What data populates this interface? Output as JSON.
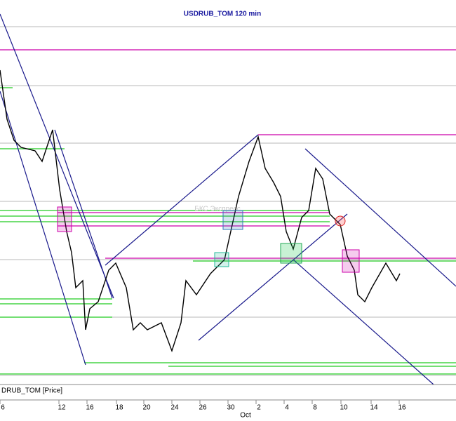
{
  "chart_data": {
    "type": "candlestick",
    "title": "USDRUB_TOM 120 min",
    "panel_label": "DRUB_TOM [Price]",
    "watermark": "БКС Экспресс",
    "date_labels": [
      "6",
      "12",
      "16",
      "18",
      "20",
      "24",
      "26",
      "30",
      "2",
      "4",
      "8",
      "10",
      "14",
      "16"
    ],
    "month_label": "Oct"
  }
}
